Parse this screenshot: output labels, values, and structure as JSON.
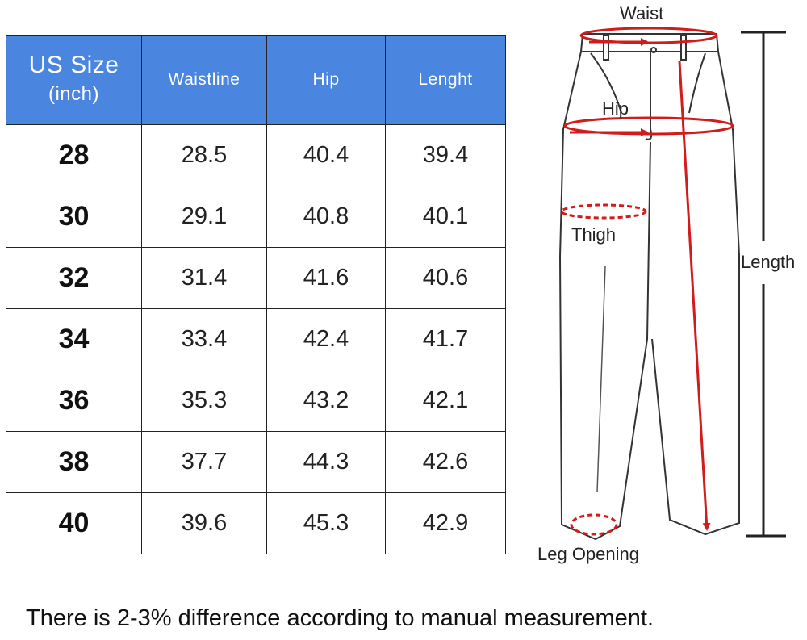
{
  "table": {
    "headers": {
      "size": "US Size",
      "size_unit": "(inch)",
      "waist": "Waistline",
      "hip": "Hip",
      "length": "Lenght"
    },
    "rows": [
      {
        "size": "28",
        "waist": "28.5",
        "hip": "40.4",
        "length": "39.4"
      },
      {
        "size": "30",
        "waist": "29.1",
        "hip": "40.8",
        "length": "40.1"
      },
      {
        "size": "32",
        "waist": "31.4",
        "hip": "41.6",
        "length": "40.6"
      },
      {
        "size": "34",
        "waist": "33.4",
        "hip": "42.4",
        "length": "41.7"
      },
      {
        "size": "36",
        "waist": "35.3",
        "hip": "43.2",
        "length": "42.1"
      },
      {
        "size": "38",
        "waist": "37.7",
        "hip": "44.3",
        "length": "42.6"
      },
      {
        "size": "40",
        "waist": "39.6",
        "hip": "45.3",
        "length": "42.9"
      }
    ],
    "header_color": "#4a86e0"
  },
  "diagram": {
    "labels": {
      "waist": "Waist",
      "hip": "Hip",
      "thigh": "Thigh",
      "length": "Length",
      "leg_opening": "Leg Opening"
    },
    "measure_color": "#d21c1c"
  },
  "footnote": "There is 2-3% difference according to manual measurement."
}
